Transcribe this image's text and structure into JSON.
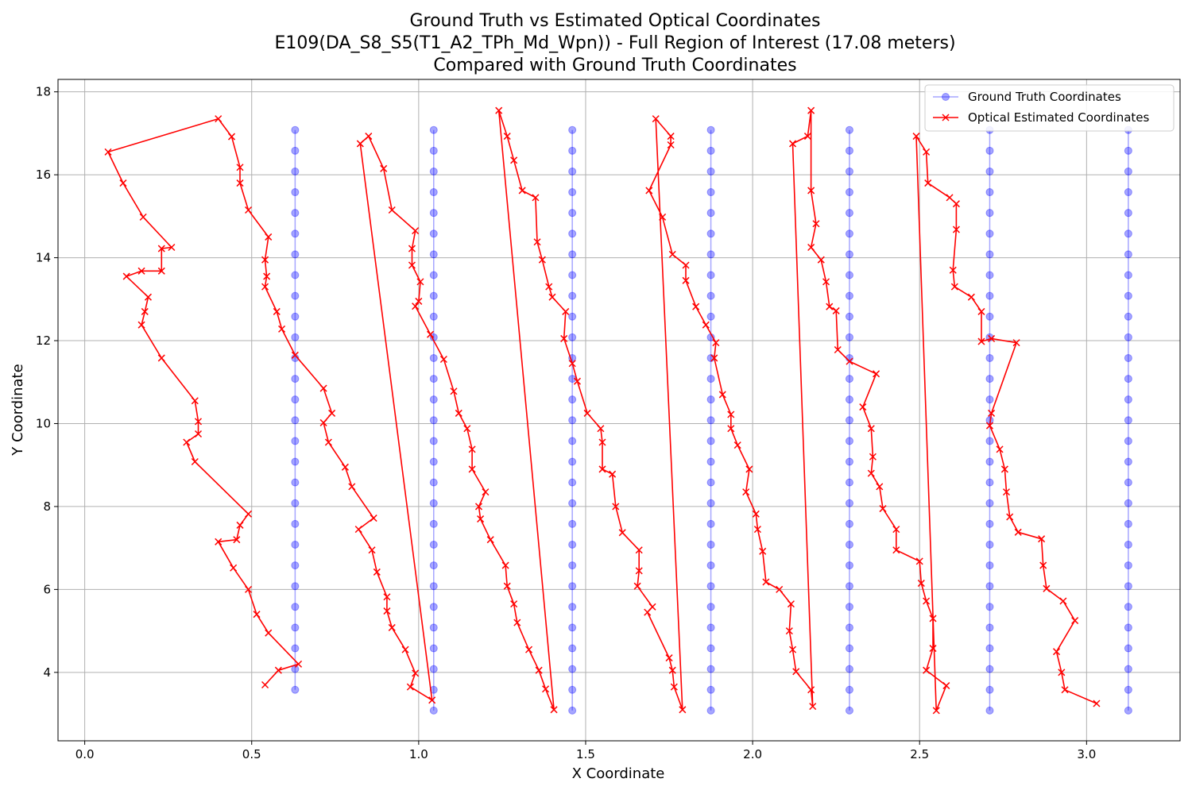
{
  "chart_data": {
    "type": "line",
    "title": [
      "Ground Truth vs Estimated Optical Coordinates",
      "E109(DA_S8_S5(T1_A2_TPh_Md_Wpn)) - Full Region of Interest (17.08 meters)",
      "Compared with Ground Truth Coordinates"
    ],
    "xlabel": "X Coordinate",
    "ylabel": "Y Coordinate",
    "xlim": [
      -0.08,
      3.28
    ],
    "ylim": [
      2.35,
      18.3
    ],
    "xticks": [
      0.0,
      0.5,
      1.0,
      1.5,
      2.0,
      2.5,
      3.0
    ],
    "xtick_labels": [
      "0.0",
      "0.5",
      "1.0",
      "1.5",
      "2.0",
      "2.5",
      "3.0"
    ],
    "yticks": [
      4,
      6,
      8,
      10,
      12,
      14,
      16,
      18
    ],
    "ytick_labels": [
      "4",
      "6",
      "8",
      "10",
      "12",
      "14",
      "16",
      "18"
    ],
    "grid": true,
    "legend_position": "top-right",
    "colors": {
      "ground_truth": "#0000ff",
      "optical": "#ff0000"
    },
    "series": [
      {
        "name": "Ground Truth Coordinates",
        "marker": "circle",
        "color": "#0000ff",
        "lines": [
          {
            "x": 0.63,
            "y_start": 3.58,
            "y_end": 17.08,
            "step": 0.5
          },
          {
            "x": 1.045,
            "y_start": 3.08,
            "y_end": 17.08,
            "step": 0.5
          },
          {
            "x": 1.46,
            "y_start": 3.08,
            "y_end": 17.08,
            "step": 0.5
          },
          {
            "x": 1.875,
            "y_start": 3.08,
            "y_end": 17.08,
            "step": 0.5
          },
          {
            "x": 2.29,
            "y_start": 3.08,
            "y_end": 17.08,
            "step": 0.5
          },
          {
            "x": 2.71,
            "y_start": 3.08,
            "y_end": 17.08,
            "step": 0.5
          },
          {
            "x": 3.125,
            "y_start": 3.08,
            "y_end": 17.08,
            "step": 0.5
          }
        ]
      },
      {
        "name": "Optical Estimated Coordinates",
        "marker": "x",
        "color": "#ff0000",
        "points": [
          [
            0.54,
            3.7
          ],
          [
            0.58,
            4.05
          ],
          [
            0.64,
            4.2
          ],
          [
            0.55,
            4.95
          ],
          [
            0.515,
            5.4
          ],
          [
            0.49,
            6.0
          ],
          [
            0.445,
            6.52
          ],
          [
            0.4,
            7.15
          ],
          [
            0.455,
            7.2
          ],
          [
            0.465,
            7.55
          ],
          [
            0.49,
            7.82
          ],
          [
            0.33,
            9.08
          ],
          [
            0.305,
            9.55
          ],
          [
            0.34,
            9.75
          ],
          [
            0.34,
            10.05
          ],
          [
            0.33,
            10.55
          ],
          [
            0.23,
            11.58
          ],
          [
            0.17,
            12.38
          ],
          [
            0.18,
            12.7
          ],
          [
            0.19,
            13.05
          ],
          [
            0.125,
            13.55
          ],
          [
            0.17,
            13.68
          ],
          [
            0.23,
            13.68
          ],
          [
            0.23,
            14.22
          ],
          [
            0.26,
            14.25
          ],
          [
            0.175,
            14.98
          ],
          [
            0.115,
            15.8
          ],
          [
            0.07,
            16.55
          ],
          [
            0.4,
            17.35
          ],
          [
            0.44,
            16.92
          ],
          [
            0.465,
            16.18
          ],
          [
            0.465,
            15.8
          ],
          [
            0.49,
            15.15
          ],
          [
            0.55,
            14.5
          ],
          [
            0.54,
            13.95
          ],
          [
            0.545,
            13.55
          ],
          [
            0.54,
            13.3
          ],
          [
            0.575,
            12.7
          ],
          [
            0.59,
            12.28
          ],
          [
            0.63,
            11.65
          ],
          [
            0.715,
            10.85
          ],
          [
            0.74,
            10.25
          ],
          [
            0.715,
            10.02
          ],
          [
            0.73,
            9.55
          ],
          [
            0.78,
            8.95
          ],
          [
            0.8,
            8.48
          ],
          [
            0.865,
            7.72
          ],
          [
            0.82,
            7.45
          ],
          [
            0.86,
            6.95
          ],
          [
            0.875,
            6.42
          ],
          [
            0.905,
            5.82
          ],
          [
            0.905,
            5.48
          ],
          [
            0.92,
            5.08
          ],
          [
            0.96,
            4.55
          ],
          [
            0.99,
            3.98
          ],
          [
            0.975,
            3.65
          ],
          [
            1.04,
            3.33
          ],
          [
            0.825,
            16.75
          ],
          [
            0.85,
            16.93
          ],
          [
            0.895,
            16.15
          ],
          [
            0.92,
            15.15
          ],
          [
            0.99,
            14.65
          ],
          [
            0.98,
            14.22
          ],
          [
            0.98,
            13.82
          ],
          [
            1.005,
            13.42
          ],
          [
            1.0,
            12.95
          ],
          [
            0.99,
            12.83
          ],
          [
            1.035,
            12.15
          ],
          [
            1.075,
            11.55
          ],
          [
            1.105,
            10.78
          ],
          [
            1.12,
            10.25
          ],
          [
            1.145,
            9.88
          ],
          [
            1.16,
            9.38
          ],
          [
            1.16,
            8.9
          ],
          [
            1.2,
            8.35
          ],
          [
            1.18,
            8.0
          ],
          [
            1.185,
            7.7
          ],
          [
            1.215,
            7.2
          ],
          [
            1.26,
            6.58
          ],
          [
            1.265,
            6.08
          ],
          [
            1.285,
            5.65
          ],
          [
            1.295,
            5.2
          ],
          [
            1.33,
            4.55
          ],
          [
            1.36,
            4.05
          ],
          [
            1.38,
            3.6
          ],
          [
            1.405,
            3.1
          ],
          [
            1.24,
            17.55
          ],
          [
            1.265,
            16.93
          ],
          [
            1.285,
            16.35
          ],
          [
            1.31,
            15.62
          ],
          [
            1.35,
            15.45
          ],
          [
            1.355,
            14.38
          ],
          [
            1.37,
            13.95
          ],
          [
            1.39,
            13.3
          ],
          [
            1.4,
            13.05
          ],
          [
            1.44,
            12.7
          ],
          [
            1.435,
            12.05
          ],
          [
            1.46,
            11.45
          ],
          [
            1.475,
            11.02
          ],
          [
            1.505,
            10.25
          ],
          [
            1.545,
            9.88
          ],
          [
            1.55,
            9.55
          ],
          [
            1.55,
            8.9
          ],
          [
            1.58,
            8.78
          ],
          [
            1.59,
            8.0
          ],
          [
            1.61,
            7.37
          ],
          [
            1.66,
            6.95
          ],
          [
            1.66,
            6.45
          ],
          [
            1.655,
            6.08
          ],
          [
            1.7,
            5.58
          ],
          [
            1.685,
            5.45
          ],
          [
            1.75,
            4.35
          ],
          [
            1.76,
            4.05
          ],
          [
            1.765,
            3.65
          ],
          [
            1.79,
            3.1
          ],
          [
            1.71,
            17.35
          ],
          [
            1.755,
            16.93
          ],
          [
            1.755,
            16.72
          ],
          [
            1.69,
            15.62
          ],
          [
            1.73,
            14.98
          ],
          [
            1.76,
            14.08
          ],
          [
            1.8,
            13.82
          ],
          [
            1.8,
            13.45
          ],
          [
            1.83,
            12.82
          ],
          [
            1.86,
            12.38
          ],
          [
            1.89,
            11.95
          ],
          [
            1.885,
            11.58
          ],
          [
            1.91,
            10.7
          ],
          [
            1.935,
            10.22
          ],
          [
            1.935,
            9.88
          ],
          [
            1.955,
            9.48
          ],
          [
            1.99,
            8.9
          ],
          [
            1.98,
            8.35
          ],
          [
            2.01,
            7.82
          ],
          [
            2.015,
            7.45
          ],
          [
            2.03,
            6.92
          ],
          [
            2.04,
            6.18
          ],
          [
            2.08,
            6.0
          ],
          [
            2.115,
            5.65
          ],
          [
            2.11,
            5.0
          ],
          [
            2.12,
            4.55
          ],
          [
            2.13,
            4.02
          ],
          [
            2.175,
            3.58
          ],
          [
            2.18,
            3.18
          ],
          [
            2.12,
            16.75
          ],
          [
            2.165,
            16.93
          ],
          [
            2.175,
            17.55
          ],
          [
            2.175,
            15.62
          ],
          [
            2.19,
            14.82
          ],
          [
            2.175,
            14.25
          ],
          [
            2.205,
            13.95
          ],
          [
            2.22,
            13.42
          ],
          [
            2.23,
            12.82
          ],
          [
            2.25,
            12.72
          ],
          [
            2.255,
            11.78
          ],
          [
            2.29,
            11.5
          ],
          [
            2.37,
            11.2
          ],
          [
            2.33,
            10.4
          ],
          [
            2.355,
            9.88
          ],
          [
            2.36,
            9.2
          ],
          [
            2.355,
            8.8
          ],
          [
            2.38,
            8.48
          ],
          [
            2.39,
            7.95
          ],
          [
            2.43,
            7.45
          ],
          [
            2.43,
            6.95
          ],
          [
            2.5,
            6.68
          ],
          [
            2.505,
            6.15
          ],
          [
            2.52,
            5.72
          ],
          [
            2.54,
            5.3
          ],
          [
            2.54,
            4.58
          ],
          [
            2.52,
            4.05
          ],
          [
            2.58,
            3.68
          ],
          [
            2.55,
            3.08
          ],
          [
            2.49,
            16.93
          ],
          [
            2.52,
            16.55
          ],
          [
            2.525,
            15.8
          ],
          [
            2.59,
            15.45
          ],
          [
            2.61,
            15.3
          ],
          [
            2.61,
            14.68
          ],
          [
            2.6,
            13.7
          ],
          [
            2.605,
            13.3
          ],
          [
            2.655,
            13.05
          ],
          [
            2.685,
            12.7
          ],
          [
            2.685,
            11.98
          ],
          [
            2.715,
            12.05
          ],
          [
            2.79,
            11.95
          ],
          [
            2.715,
            10.25
          ],
          [
            2.71,
            9.95
          ],
          [
            2.74,
            9.38
          ],
          [
            2.755,
            8.9
          ],
          [
            2.76,
            8.35
          ],
          [
            2.77,
            7.75
          ],
          [
            2.795,
            7.38
          ],
          [
            2.865,
            7.22
          ],
          [
            2.87,
            6.58
          ],
          [
            2.88,
            6.02
          ],
          [
            2.93,
            5.72
          ],
          [
            2.965,
            5.25
          ],
          [
            2.91,
            4.5
          ],
          [
            2.925,
            4.0
          ],
          [
            2.935,
            3.58
          ],
          [
            3.03,
            3.25
          ]
        ]
      }
    ]
  }
}
